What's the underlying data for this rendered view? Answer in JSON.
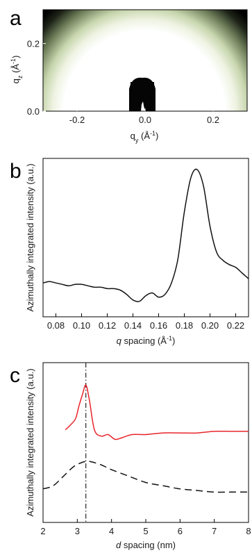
{
  "panels": {
    "a": {
      "label": "a",
      "ylabel_main": "q",
      "ylabel_sub": "z",
      "ylabel_unit_pre": " (Å",
      "ylabel_unit_exp": "-1",
      "ylabel_unit_post": ")",
      "xlabel_main": "q",
      "xlabel_sub": "y",
      "xlabel_unit_pre": " (Å",
      "xlabel_unit_exp": "-1",
      "xlabel_unit_post": ")"
    },
    "b": {
      "label": "b",
      "ylabel": "Azimuthally integrated intensity (a.u.)",
      "xlabel_italic": "q",
      "xlabel_rest": " spacing (Å",
      "xlabel_exp": "-1",
      "xlabel_end": ")"
    },
    "c": {
      "label": "c",
      "ylabel": "Azimuthally integrated intensity (a.u.)",
      "xlabel_italic": "d",
      "xlabel_rest": " spacing (nm)"
    }
  },
  "chart_data": [
    {
      "panel": "a",
      "type": "heatmap",
      "title": "",
      "xlabel": "qy (Å-1)",
      "ylabel": "qz (Å-1)",
      "xlim": [
        -0.3,
        0.3
      ],
      "ylim": [
        0.0,
        0.3
      ],
      "x_ticks": [
        "-0.2",
        "0.0",
        "0.2"
      ],
      "y_ticks": [
        "0.0",
        "0.2"
      ],
      "colormap": [
        "#000000",
        "#5a6a48",
        "#c8d6ae",
        "#ffffff"
      ],
      "ring_radius_q": 0.19,
      "beamstop_halfwidth_q": 0.04
    },
    {
      "panel": "b",
      "type": "line",
      "xlabel": "q spacing (Å-1)",
      "ylabel": "Azimuthally integrated intensity (a.u.)",
      "xlim": [
        0.07,
        0.23
      ],
      "ylim": [
        0,
        1
      ],
      "x_ticks": [
        "0.08",
        "0.10",
        "0.12",
        "0.14",
        "0.16",
        "0.18",
        "0.20",
        "0.22"
      ],
      "series": [
        {
          "color": "#111111",
          "x": [
            0.07,
            0.075,
            0.08,
            0.085,
            0.09,
            0.095,
            0.1,
            0.105,
            0.11,
            0.115,
            0.12,
            0.125,
            0.13,
            0.135,
            0.14,
            0.145,
            0.15,
            0.155,
            0.16,
            0.165,
            0.17,
            0.175,
            0.18,
            0.185,
            0.19,
            0.195,
            0.2,
            0.205,
            0.21,
            0.215,
            0.22,
            0.225,
            0.23
          ],
          "y": [
            0.18,
            0.19,
            0.18,
            0.17,
            0.16,
            0.17,
            0.17,
            0.16,
            0.15,
            0.15,
            0.14,
            0.14,
            0.13,
            0.1,
            0.06,
            0.05,
            0.09,
            0.11,
            0.08,
            0.1,
            0.18,
            0.35,
            0.68,
            0.92,
            0.98,
            0.86,
            0.58,
            0.4,
            0.34,
            0.31,
            0.29,
            0.25,
            0.21
          ]
        }
      ]
    },
    {
      "panel": "c",
      "type": "line",
      "xlabel": "d spacing (nm)",
      "ylabel": "Azimuthally integrated intensity (a.u.)",
      "xlim": [
        2,
        8
      ],
      "ylim": [
        0,
        1
      ],
      "x_ticks": [
        "2",
        "3",
        "4",
        "5",
        "6",
        "7",
        "8"
      ],
      "vline_x": 3.25,
      "series": [
        {
          "color": "#e8252b",
          "dash": "solid",
          "x": [
            2.65,
            2.8,
            2.95,
            3.05,
            3.15,
            3.25,
            3.35,
            3.5,
            3.7,
            3.9,
            4.1,
            4.3,
            4.6,
            5.0,
            5.5,
            6.0,
            6.5,
            7.0,
            7.5,
            8.0
          ],
          "y": [
            0.58,
            0.61,
            0.65,
            0.73,
            0.8,
            0.86,
            0.77,
            0.58,
            0.54,
            0.55,
            0.52,
            0.53,
            0.55,
            0.55,
            0.56,
            0.56,
            0.56,
            0.57,
            0.57,
            0.57
          ]
        },
        {
          "color": "#111111",
          "dash": "dashed",
          "x": [
            2.0,
            2.3,
            2.6,
            2.9,
            3.2,
            3.4,
            3.7,
            4.0,
            4.5,
            5.0,
            5.5,
            6.0,
            6.5,
            7.0,
            7.5,
            8.0
          ],
          "y": [
            0.21,
            0.23,
            0.29,
            0.35,
            0.38,
            0.38,
            0.36,
            0.33,
            0.29,
            0.25,
            0.23,
            0.21,
            0.2,
            0.19,
            0.19,
            0.19
          ]
        }
      ]
    }
  ]
}
